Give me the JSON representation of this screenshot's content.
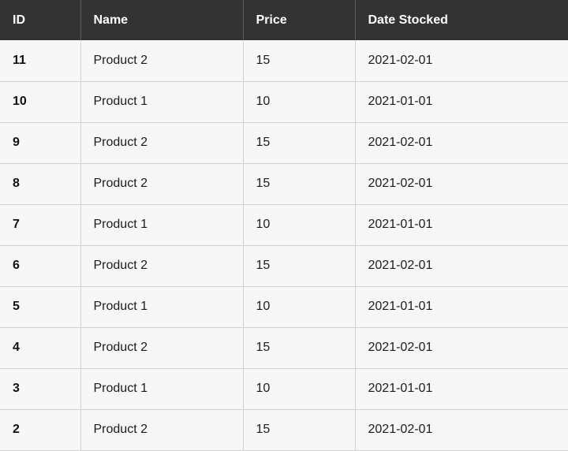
{
  "table": {
    "headers": [
      "ID",
      "Name",
      "Price",
      "Date Stocked"
    ],
    "rows": [
      [
        "11",
        "Product 2",
        "15",
        "2021-02-01"
      ],
      [
        "10",
        "Product 1",
        "10",
        "2021-01-01"
      ],
      [
        "9",
        "Product 2",
        "15",
        "2021-02-01"
      ],
      [
        "8",
        "Product 2",
        "15",
        "2021-02-01"
      ],
      [
        "7",
        "Product 1",
        "10",
        "2021-01-01"
      ],
      [
        "6",
        "Product 2",
        "15",
        "2021-02-01"
      ],
      [
        "5",
        "Product 1",
        "10",
        "2021-01-01"
      ],
      [
        "4",
        "Product 2",
        "15",
        "2021-02-01"
      ],
      [
        "3",
        "Product 1",
        "10",
        "2021-01-01"
      ],
      [
        "2",
        "Product 2",
        "15",
        "2021-02-01"
      ]
    ]
  },
  "colors": {
    "header_background": "#333333",
    "header_text": "#ffffff",
    "row_background": "#f7f7f7",
    "border": "#d2d2d2"
  }
}
